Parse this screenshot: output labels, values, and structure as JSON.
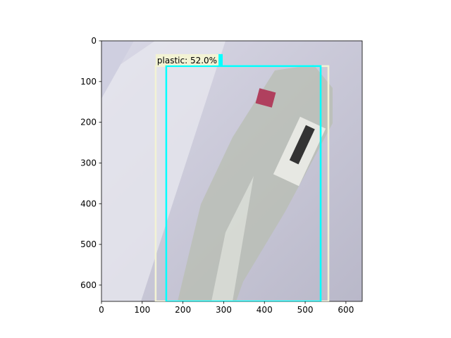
{
  "chart_data": {
    "type": "image",
    "xlim": [
      0,
      640
    ],
    "ylim": [
      640,
      0
    ],
    "xticks": [
      0,
      100,
      200,
      300,
      400,
      500,
      600
    ],
    "yticks": [
      0,
      100,
      200,
      300,
      400,
      500,
      600
    ],
    "boxes": [
      {
        "label": "plastic: 52.0%",
        "color": "#f3f3d4",
        "x0": 133,
        "y0": 62,
        "x1": 557,
        "y1": 640
      },
      {
        "color": "#00ffff",
        "x0": 159,
        "y0": 62,
        "x1": 538,
        "y1": 640
      }
    ]
  }
}
